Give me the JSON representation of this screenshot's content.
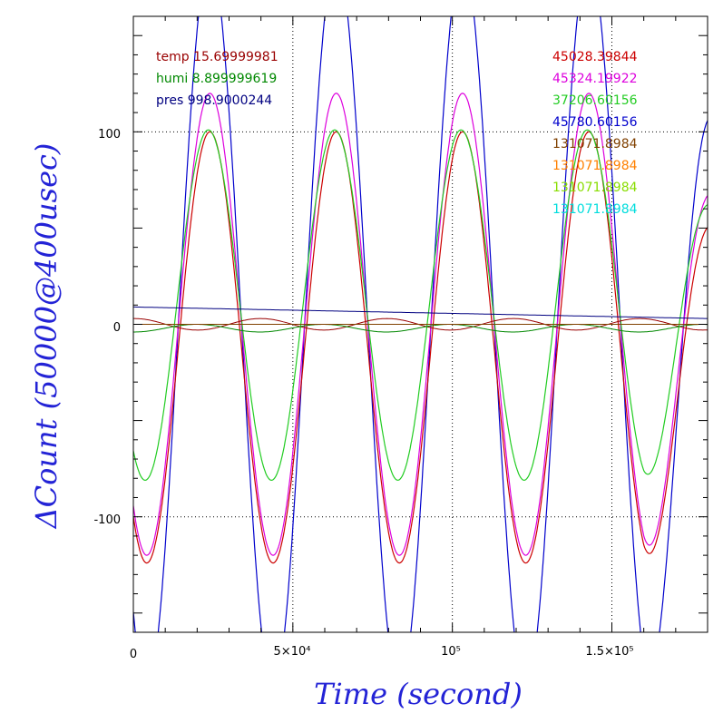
{
  "chart_data": {
    "type": "line",
    "title": "",
    "xlabel": "Time (second)",
    "ylabel": "ΔCount (50000@400usec)",
    "xlim": [
      0,
      180000
    ],
    "ylim": [
      -160,
      160
    ],
    "x_ticks": [
      {
        "value": 0,
        "label": "0"
      },
      {
        "value": 50000,
        "label": "5×10⁴"
      },
      {
        "value": 100000,
        "label": "10⁵"
      },
      {
        "value": 150000,
        "label": "1.5×10⁵"
      }
    ],
    "y_ticks": [
      {
        "value": -100,
        "label": "-100"
      },
      {
        "value": 0,
        "label": "0"
      },
      {
        "value": 100,
        "label": "100"
      }
    ],
    "grid": "dotted",
    "legend_left": [
      {
        "text": "temp 15.69999981",
        "color": "#990000"
      },
      {
        "text": "humi 8.899999619",
        "color": "#008800"
      },
      {
        "text": "pres 998.9000244",
        "color": "#000080"
      }
    ],
    "legend_right": [
      {
        "text": "45028.39844",
        "color": "#cc0000"
      },
      {
        "text": "45324.19922",
        "color": "#dd00dd"
      },
      {
        "text": "37206.60156",
        "color": "#22cc22"
      },
      {
        "text": "45780.60156",
        "color": "#0000cc"
      },
      {
        "text": "131071.8984",
        "color": "#804000"
      },
      {
        "text": "131071.8984",
        "color": "#ff8000"
      },
      {
        "text": "131071.8984",
        "color": "#88dd00"
      },
      {
        "text": "131071.8984",
        "color": "#00dddd"
      }
    ],
    "series": [
      {
        "color": "#0000cc",
        "period": 39600,
        "peak_x": 24000,
        "amplitude": 190,
        "offset": 0
      },
      {
        "color": "#dd00dd",
        "period": 39600,
        "peak_x": 24000,
        "amplitude": 120,
        "offset": 0
      },
      {
        "color": "#cc0000",
        "period": 39600,
        "peak_x": 24000,
        "amplitude": 112,
        "offset": -12
      },
      {
        "color": "#22cc22",
        "period": 39600,
        "peak_x": 23500,
        "amplitude": 91,
        "offset": 10
      }
    ]
  }
}
